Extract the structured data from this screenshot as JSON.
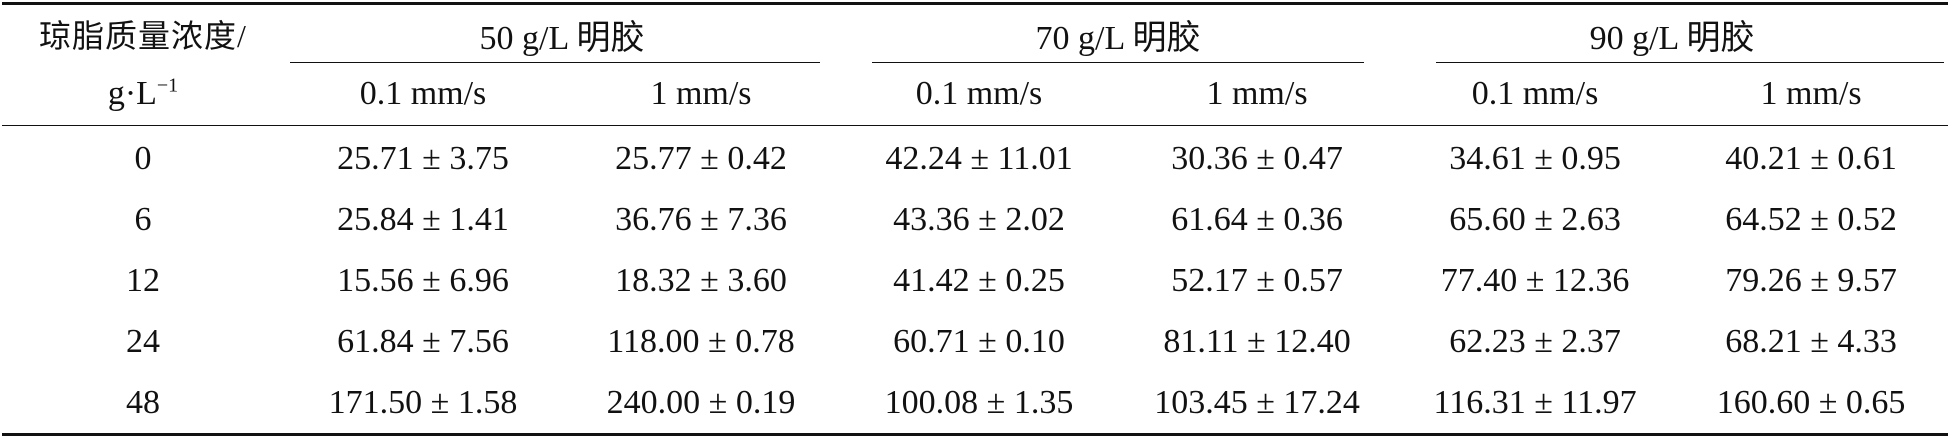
{
  "header": {
    "concentration_label": "琼脂质量浓度/",
    "unit_label_base": "g·L",
    "unit_label_sup": "−1",
    "groups": [
      {
        "label": "50 g/L 明胶"
      },
      {
        "label": "70 g/L 明胶"
      },
      {
        "label": "90 g/L 明胶"
      }
    ],
    "speeds": [
      "0.1 mm/s",
      "1 mm/s",
      "0.1 mm/s",
      "1 mm/s",
      "0.1 mm/s",
      "1 mm/s"
    ]
  },
  "rows": [
    {
      "conc": "0",
      "values": [
        "25.71 ± 3.75",
        "25.77 ± 0.42",
        "42.24 ± 11.01",
        "30.36 ± 0.47",
        "34.61 ± 0.95",
        "40.21 ± 0.61"
      ]
    },
    {
      "conc": "6",
      "values": [
        "25.84 ± 1.41",
        "36.76 ± 7.36",
        "43.36 ± 2.02",
        "61.64 ± 0.36",
        "65.60 ± 2.63",
        "64.52 ± 0.52"
      ]
    },
    {
      "conc": "12",
      "values": [
        "15.56 ± 6.96",
        "18.32 ± 3.60",
        "41.42 ± 0.25",
        "52.17 ± 0.57",
        "77.40 ± 12.36",
        "79.26 ± 9.57"
      ]
    },
    {
      "conc": "24",
      "values": [
        "61.84 ± 7.56",
        "118.00 ± 0.78",
        "60.71 ± 0.10",
        "81.11 ± 12.40",
        "62.23 ± 2.37",
        "68.21 ± 4.33"
      ]
    },
    {
      "conc": "48",
      "values": [
        "171.50 ± 1.58",
        "240.00 ± 0.19",
        "100.08 ± 1.35",
        "103.45 ± 17.24",
        "116.31 ± 11.97",
        "160.60 ± 0.65"
      ]
    }
  ]
}
